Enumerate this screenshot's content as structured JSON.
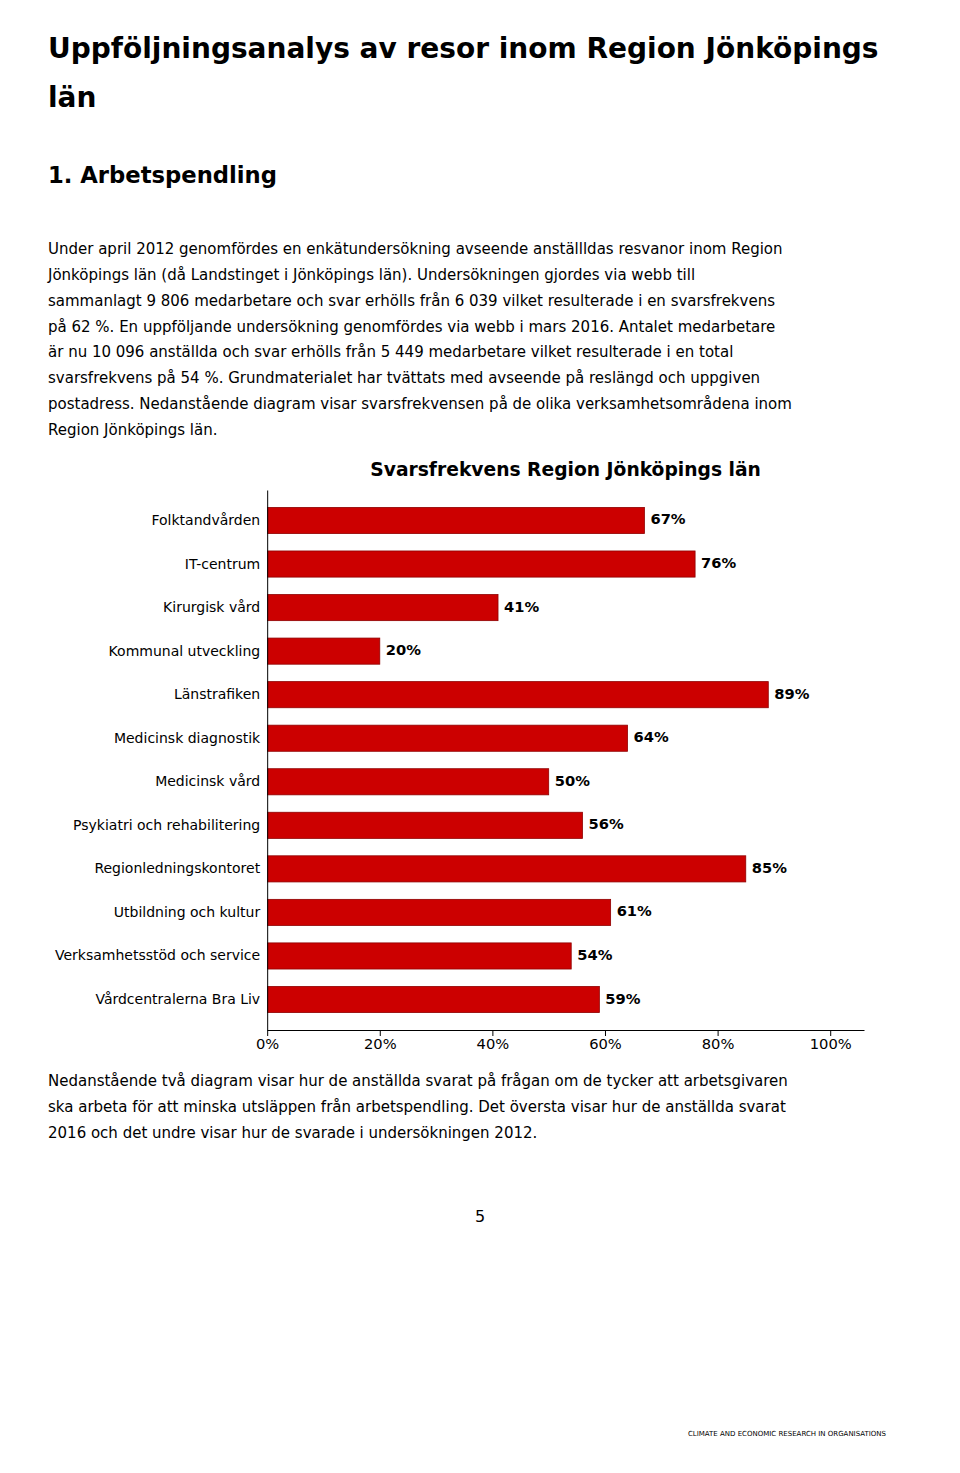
{
  "title_lines": [
    "Uppföljningsanalys av resor inom Region Jönköpings",
    "län"
  ],
  "section_title": "1. Arbetspendling",
  "paragraphs": [
    [
      "Under april 2012 genomfördes en enkätundersökning avseende anställldas resvanor inom Region",
      "Jönköpings län (då Landstinget i Jönköpings län). Undersökningen gjordes via webb till",
      "sammanlagt 9 806 medarbetare och svar erhölls från 6 039 vilket resulterade i en svarsfrekvens",
      "på 62 %. En uppföljande undersökning genomfördes via webb i mars 2016. Antalet medarbetare",
      "är nu 10 096 anställda och svar erhölls från 5 449 medarbetare vilket resulterade i en total",
      "svarsfrekvens på 54 %. Grundmaterialet har tvättats med avseende på reslängd och uppgiven",
      "postadress. Nedanstående diagram visar svarsfrekvensen på de olika verksamhetsområdena inom",
      "Region Jönköpings län."
    ],
    [
      "Nedanstående två diagram visar hur de anställda svarat på frågan om de tycker att arbetsgivaren",
      "ska arbeta för att minska utsläppen från arbetspendling. Det översta visar hur de anställda svarat",
      "2016 och det undre visar hur de svarade i undersökningen 2012."
    ]
  ],
  "chart_data": {
    "type": "bar",
    "orientation": "horizontal",
    "title": "Svarsfrekvens Region Jönköpings län",
    "categories": [
      "Folktandvården",
      "IT-centrum",
      "Kirurgisk vård",
      "Kommunal utveckling",
      "Länstrafiken",
      "Medicinsk diagnostik",
      "Medicinsk vård",
      "Psykiatri och rehabilitering",
      "Regionledningskontoret",
      "Utbildning och kultur",
      "Verksamhetsstöd och service",
      "Vårdcentralerna Bra Liv"
    ],
    "values": [
      67,
      76,
      41,
      20,
      89,
      64,
      50,
      56,
      85,
      61,
      54,
      59
    ],
    "value_labels": [
      "67%",
      "76%",
      "41%",
      "20%",
      "89%",
      "64%",
      "50%",
      "56%",
      "85%",
      "61%",
      "54%",
      "59%"
    ],
    "data_labels": true,
    "color": "#CC0000",
    "xlim": [
      0,
      106
    ],
    "xticks": [
      {
        "value": 0,
        "label": "0%"
      },
      {
        "value": 20,
        "label": "20%"
      },
      {
        "value": 40,
        "label": "40%"
      },
      {
        "value": 60,
        "label": "60%"
      },
      {
        "value": 80,
        "label": "80%"
      },
      {
        "value": 100,
        "label": "100%"
      }
    ]
  },
  "page_number": "5",
  "logo_text": "CLIMATE AND ECONOMIC RESEARCH IN ORGANISATIONS"
}
